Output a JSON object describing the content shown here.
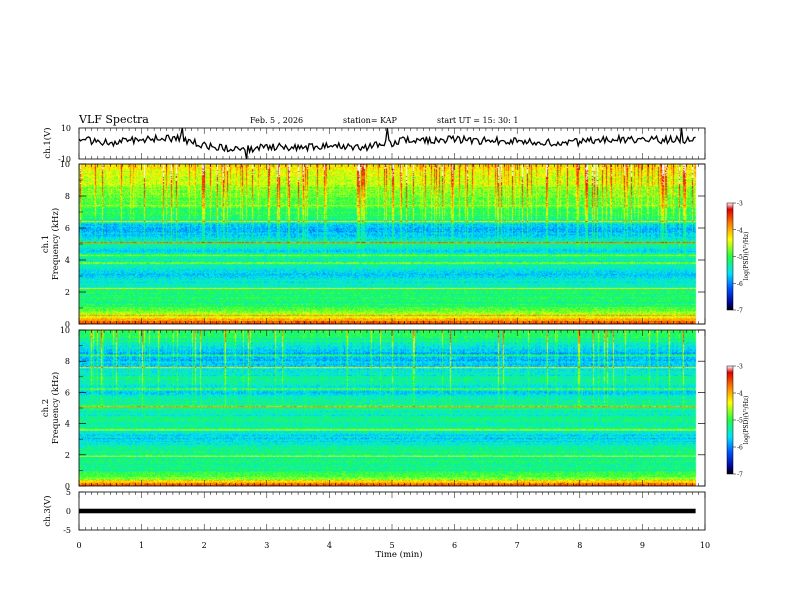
{
  "header": {
    "title": "VLF Spectra",
    "date": "Feb. 5  , 2026",
    "station": "station= KAP",
    "start": "start  UT  =   15: 30: 1"
  },
  "colorbar": {
    "min": -7,
    "max": -3,
    "ticks": [
      -3,
      -4,
      -5,
      -6,
      -7
    ],
    "label": "log(PSD)(V²/Hz)"
  },
  "chart_data": [
    {
      "type": "line",
      "name": "ch1-waveform",
      "ylabel": "ch.1(V)",
      "ylim": [
        -10,
        10
      ],
      "yticks": [
        10,
        -10
      ],
      "x_range": [
        0,
        9.85
      ],
      "samples_per_min": 40,
      "mean_profile": [
        [
          0.0,
          2.5
        ],
        [
          0.5,
          0.5
        ],
        [
          1.2,
          3.0
        ],
        [
          1.6,
          3.0
        ],
        [
          1.8,
          1.0
        ],
        [
          2.2,
          -2.5
        ],
        [
          2.8,
          -3.2
        ],
        [
          3.2,
          -1.8
        ],
        [
          3.6,
          -3.2
        ],
        [
          4.0,
          -0.5
        ],
        [
          4.5,
          -2.6
        ],
        [
          4.8,
          -1.0
        ],
        [
          5.2,
          2.0
        ],
        [
          6.0,
          2.5
        ],
        [
          6.5,
          1.8
        ],
        [
          7.2,
          1.5
        ],
        [
          7.8,
          0.5
        ],
        [
          8.5,
          3.0
        ],
        [
          9.2,
          2.5
        ],
        [
          9.85,
          2.5
        ]
      ],
      "noise_amplitude": 2.5,
      "spikes": [
        {
          "t": 1.65,
          "v": 10
        },
        {
          "t": 2.68,
          "v": -10
        },
        {
          "t": 4.92,
          "v": 10
        },
        {
          "t": 9.62,
          "v": 10
        }
      ]
    },
    {
      "type": "heatmap",
      "name": "ch1-spectrogram",
      "ylabel": "ch.1",
      "ylabel2": "Frequency  (kHz)",
      "ylim": [
        0,
        10
      ],
      "yticks": [
        0,
        2,
        4,
        6,
        8,
        10
      ],
      "x_range": [
        0,
        9.85
      ],
      "value_range": [
        -7,
        -3
      ],
      "band_levels": [
        {
          "f": 0.1,
          "v": -3.6
        },
        {
          "f": 0.4,
          "v": -4.4
        },
        {
          "f": 0.8,
          "v": -4.9
        },
        {
          "f": 1.3,
          "v": -5.2
        },
        {
          "f": 1.6,
          "v": -5.1
        },
        {
          "f": 2.0,
          "v": -5.2
        },
        {
          "f": 2.5,
          "v": -5.4
        },
        {
          "f": 3.0,
          "v": -5.7
        },
        {
          "f": 3.5,
          "v": -5.5
        },
        {
          "f": 4.2,
          "v": -5.3
        },
        {
          "f": 4.5,
          "v": -5.7
        },
        {
          "f": 4.9,
          "v": -5.3
        },
        {
          "f": 5.5,
          "v": -5.6
        },
        {
          "f": 6.0,
          "v": -5.9
        },
        {
          "f": 6.6,
          "v": -5.2
        },
        {
          "f": 7.3,
          "v": -5.0
        },
        {
          "f": 8.0,
          "v": -4.8
        },
        {
          "f": 9.0,
          "v": -4.5
        },
        {
          "f": 10.0,
          "v": -4.3
        }
      ],
      "lines": [
        {
          "f": 0.5,
          "v": -4.0
        },
        {
          "f": 2.2,
          "v": -4.3
        },
        {
          "f": 3.8,
          "v": -4.2
        },
        {
          "f": 4.3,
          "v": -4.1
        },
        {
          "f": 5.1,
          "v": -3.7
        },
        {
          "f": 6.4,
          "v": -4.0
        },
        {
          "f": 7.4,
          "v": -4.3
        }
      ],
      "sferic_density": 0.25,
      "sferic_fmin": 6.5
    },
    {
      "type": "heatmap",
      "name": "ch2-spectrogram",
      "ylabel": "ch.2",
      "ylabel2": "Frequency  (kHz)",
      "ylim": [
        0,
        10
      ],
      "yticks": [
        0,
        2,
        4,
        6,
        8,
        10
      ],
      "x_range": [
        0,
        9.85
      ],
      "value_range": [
        -7,
        -3
      ],
      "band_levels": [
        {
          "f": 0.1,
          "v": -3.7
        },
        {
          "f": 0.4,
          "v": -4.7
        },
        {
          "f": 0.8,
          "v": -5.1
        },
        {
          "f": 1.3,
          "v": -5.3
        },
        {
          "f": 1.8,
          "v": -5.2
        },
        {
          "f": 2.5,
          "v": -5.3
        },
        {
          "f": 3.0,
          "v": -5.7
        },
        {
          "f": 3.5,
          "v": -5.4
        },
        {
          "f": 4.2,
          "v": -5.2
        },
        {
          "f": 4.6,
          "v": -5.5
        },
        {
          "f": 5.0,
          "v": -5.2
        },
        {
          "f": 5.6,
          "v": -5.4
        },
        {
          "f": 6.0,
          "v": -5.7
        },
        {
          "f": 6.8,
          "v": -5.3
        },
        {
          "f": 7.5,
          "v": -5.6
        },
        {
          "f": 8.5,
          "v": -5.8
        },
        {
          "f": 9.5,
          "v": -5.2
        },
        {
          "f": 10.0,
          "v": -5.0
        }
      ],
      "lines": [
        {
          "f": 0.3,
          "v": -4.0
        },
        {
          "f": 1.9,
          "v": -4.4
        },
        {
          "f": 3.6,
          "v": -4.2
        },
        {
          "f": 5.1,
          "v": -3.8
        },
        {
          "f": 6.2,
          "v": -4.3
        },
        {
          "f": 7.6,
          "v": -4.1
        },
        {
          "f": 8.4,
          "v": -4.4
        }
      ],
      "sferic_density": 0.08,
      "sferic_fmin": 7.0
    },
    {
      "type": "line",
      "name": "ch3-waveform",
      "ylabel": "ch.3(V)",
      "ylim": [
        -5,
        5
      ],
      "yticks": [
        5,
        0,
        -5
      ],
      "x_range": [
        0,
        9.85
      ],
      "band": [
        -0.6,
        0.6
      ]
    }
  ],
  "xaxis": {
    "label": "Time  (min)",
    "ticks": [
      0,
      1,
      2,
      3,
      4,
      5,
      6,
      7,
      8,
      9,
      10
    ],
    "range": [
      0,
      10
    ]
  }
}
